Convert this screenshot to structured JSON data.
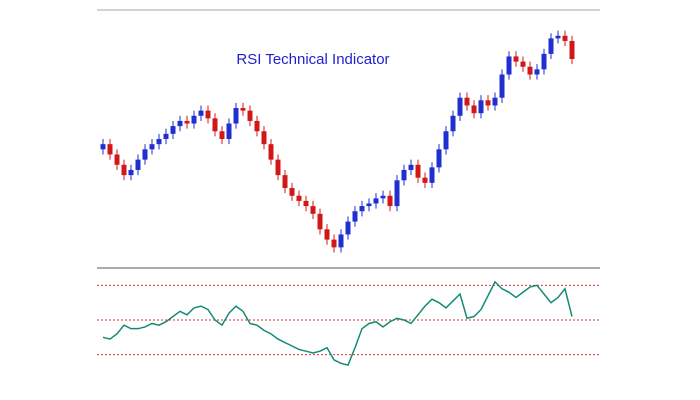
{
  "chart_data": [
    {
      "type": "candlestick",
      "title": "RSI Technical Indicator",
      "title_color": "#1f1fd0",
      "up_color": "#1f2fd0",
      "down_color": "#d01818",
      "ylim": [
        0,
        100
      ],
      "open": [
        46,
        48,
        44,
        40,
        36,
        38,
        42,
        46,
        48,
        50,
        52,
        55,
        57,
        56,
        59,
        61,
        58,
        53,
        50,
        56,
        62,
        61,
        57,
        53,
        48,
        42,
        36,
        31,
        28,
        26,
        24,
        21,
        15,
        11,
        8,
        13,
        18,
        22,
        24,
        25,
        27,
        28,
        24,
        34,
        38,
        40,
        35,
        33,
        39,
        46,
        53,
        59,
        66,
        63,
        60,
        65,
        63,
        66,
        75,
        82,
        80,
        78,
        75,
        77,
        83,
        89,
        90,
        88
      ],
      "high": [
        50,
        50,
        46,
        42,
        40,
        44,
        48,
        50,
        52,
        54,
        57,
        59,
        59,
        61,
        63,
        63,
        60,
        55,
        58,
        64,
        64,
        63,
        59,
        55,
        50,
        44,
        38,
        33,
        30,
        28,
        26,
        23,
        17,
        13,
        15,
        20,
        24,
        26,
        27,
        29,
        30,
        30,
        36,
        40,
        42,
        42,
        37,
        41,
        48,
        55,
        61,
        68,
        68,
        65,
        67,
        67,
        68,
        77,
        84,
        84,
        82,
        80,
        79,
        85,
        91,
        92,
        92,
        90
      ],
      "low": [
        44,
        42,
        38,
        34,
        34,
        36,
        40,
        44,
        46,
        48,
        50,
        53,
        54,
        54,
        57,
        56,
        51,
        48,
        48,
        54,
        59,
        55,
        51,
        46,
        40,
        34,
        29,
        26,
        24,
        22,
        19,
        13,
        9,
        6,
        6,
        11,
        16,
        20,
        22,
        23,
        25,
        22,
        22,
        32,
        36,
        33,
        31,
        31,
        37,
        44,
        51,
        57,
        61,
        58,
        58,
        61,
        61,
        64,
        73,
        78,
        76,
        73,
        73,
        75,
        81,
        87,
        86,
        79
      ],
      "close": [
        48,
        44,
        40,
        36,
        38,
        42,
        46,
        48,
        50,
        52,
        55,
        57,
        56,
        59,
        61,
        58,
        53,
        50,
        56,
        62,
        61,
        57,
        53,
        48,
        42,
        36,
        31,
        28,
        26,
        24,
        21,
        15,
        11,
        8,
        13,
        18,
        22,
        24,
        25,
        27,
        28,
        24,
        34,
        38,
        40,
        35,
        33,
        39,
        46,
        53,
        59,
        66,
        63,
        60,
        65,
        63,
        66,
        75,
        82,
        80,
        78,
        75,
        77,
        83,
        89,
        90,
        88,
        81
      ]
    },
    {
      "type": "line",
      "color": "#138a78",
      "level_color": "#e03030",
      "ylim": [
        20,
        80
      ],
      "levels": [
        30,
        50,
        70
      ],
      "values": [
        40,
        39,
        42,
        47,
        45,
        45,
        46,
        48,
        47,
        49,
        52,
        55,
        53,
        57,
        58,
        56,
        50,
        47,
        54,
        58,
        55,
        48,
        47,
        44,
        42,
        39,
        37,
        35,
        33,
        32,
        31,
        32,
        34,
        27,
        25,
        24,
        34,
        45,
        48,
        49,
        46,
        49,
        51,
        50,
        48,
        53,
        58,
        62,
        60,
        57,
        61,
        65,
        51,
        52,
        56,
        64,
        72,
        68,
        66,
        63,
        66,
        69,
        70,
        65,
        60,
        63,
        68,
        52
      ]
    }
  ]
}
